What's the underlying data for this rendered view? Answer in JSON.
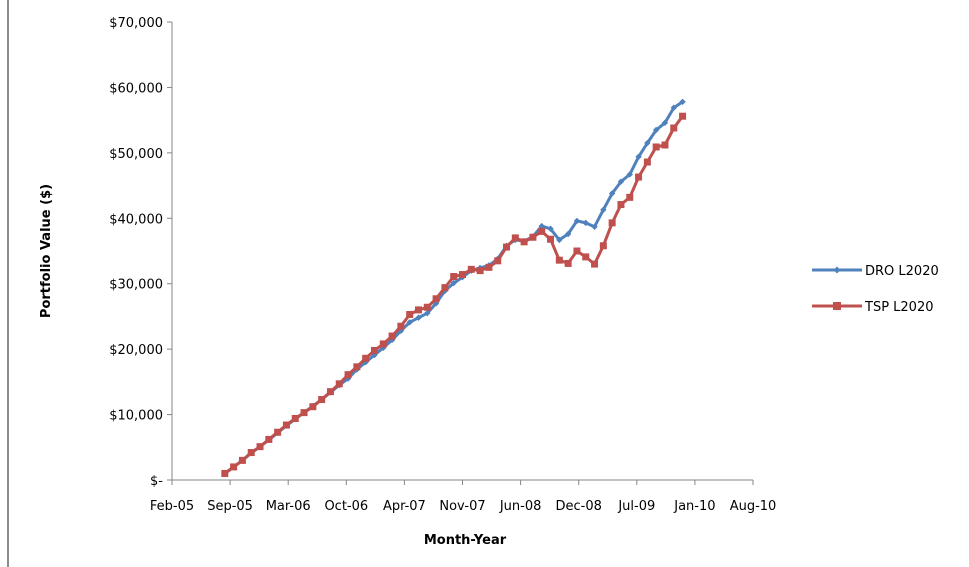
{
  "chart_data": {
    "type": "line",
    "xlabel": "Month-Year",
    "ylabel": "Portfolio Value ($)",
    "x_tick_labels": [
      "Feb-05",
      "Sep-05",
      "Mar-06",
      "Oct-06",
      "Apr-07",
      "Nov-07",
      "Jun-08",
      "Dec-08",
      "Jul-09",
      "Jan-10",
      "Aug-10"
    ],
    "y_tick_labels": [
      "$-",
      "$10,000",
      "$20,000",
      "$30,000",
      "$40,000",
      "$50,000",
      "$60,000",
      "$70,000"
    ],
    "xlim": [
      "2005-02",
      "2010-08"
    ],
    "ylim": [
      0,
      70000
    ],
    "grid": {
      "horizontal": false,
      "vertical": false
    },
    "legend_position": "right",
    "x": [
      "2005-08",
      "2005-09",
      "2005-10",
      "2005-11",
      "2005-12",
      "2006-01",
      "2006-02",
      "2006-03",
      "2006-04",
      "2006-05",
      "2006-06",
      "2006-07",
      "2006-08",
      "2006-09",
      "2006-10",
      "2006-11",
      "2006-12",
      "2007-01",
      "2007-02",
      "2007-03",
      "2007-04",
      "2007-05",
      "2007-06",
      "2007-07",
      "2007-08",
      "2007-09",
      "2007-10",
      "2007-11",
      "2007-12",
      "2008-01",
      "2008-02",
      "2008-03",
      "2008-04",
      "2008-05",
      "2008-06",
      "2008-07",
      "2008-08",
      "2008-09",
      "2008-10",
      "2008-11",
      "2008-12",
      "2009-01",
      "2009-02",
      "2009-03",
      "2009-04",
      "2009-05",
      "2009-06",
      "2009-07",
      "2009-08",
      "2009-09",
      "2009-10",
      "2009-11",
      "2009-12"
    ],
    "series": [
      {
        "name": "DRO L2020",
        "color": "#4f81bd",
        "marker": "diamond",
        "values": [
          1000,
          2000,
          3000,
          4100,
          5100,
          6100,
          7200,
          8300,
          9300,
          10300,
          11300,
          12300,
          13400,
          14500,
          15500,
          16900,
          18000,
          19100,
          20200,
          21400,
          22800,
          24100,
          24800,
          25500,
          27000,
          28900,
          30100,
          31000,
          32000,
          32400,
          32800,
          33800,
          35800,
          36700,
          36500,
          37200,
          38800,
          38400,
          36700,
          37600,
          39600,
          39300,
          38700,
          41300,
          43800,
          45600,
          46700,
          49400,
          51500,
          53500,
          54600,
          56900,
          57800
        ]
      },
      {
        "name": "TSP L2020",
        "color": "#c0504d",
        "marker": "square",
        "values": [
          1000,
          2000,
          3000,
          4200,
          5100,
          6200,
          7300,
          8400,
          9400,
          10300,
          11200,
          12300,
          13500,
          14700,
          16100,
          17300,
          18600,
          19800,
          20800,
          22000,
          23500,
          25300,
          26000,
          26400,
          27700,
          29400,
          31100,
          31400,
          32200,
          32000,
          32500,
          33500,
          35600,
          37000,
          36400,
          37100,
          38000,
          36800,
          33600,
          33100,
          35000,
          34100,
          33000,
          35800,
          39300,
          42100,
          43200,
          46300,
          48600,
          50900,
          51200,
          53800,
          55600
        ]
      }
    ]
  },
  "colors": {
    "axis": "#868686",
    "frame": "#8c8c8c"
  }
}
